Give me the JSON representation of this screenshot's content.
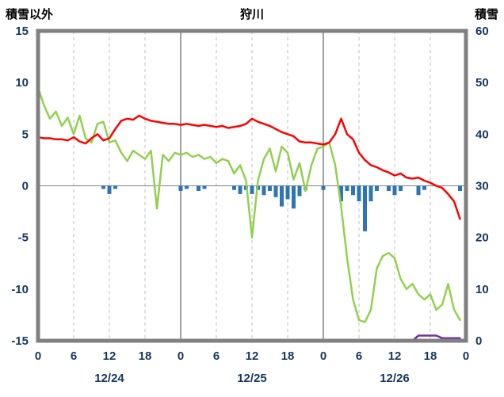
{
  "header": {
    "left_axis_title": "積雪以外",
    "chart_title": "狩川",
    "right_axis_title": "積雪"
  },
  "chart_data": {
    "type": "line",
    "title": "狩川",
    "left_axis": {
      "label": "積雪以外",
      "min": -15,
      "max": 15,
      "ticks": [
        15,
        10,
        5,
        0,
        -5,
        -10,
        -15
      ]
    },
    "right_axis": {
      "label": "積雪",
      "min": 0,
      "max": 60,
      "ticks": [
        60,
        50,
        40,
        30,
        20,
        10,
        0
      ]
    },
    "x_axis": {
      "hours_total": 72,
      "tick_hours": [
        0,
        6,
        12,
        18,
        24,
        30,
        36,
        42,
        48,
        54,
        60,
        66,
        72
      ],
      "tick_labels": [
        "0",
        "6",
        "12",
        "18",
        "0",
        "6",
        "12",
        "18",
        "0",
        "6",
        "12",
        "18",
        "0"
      ],
      "day_boundaries": [
        24,
        48
      ],
      "date_labels": [
        {
          "label": "12/24",
          "center_hour": 12
        },
        {
          "label": "12/25",
          "center_hour": 36
        },
        {
          "label": "12/26",
          "center_hour": 60
        }
      ]
    },
    "series": [
      {
        "name": "green-line",
        "color": "#92D050",
        "axis": "left",
        "values": [
          9.5,
          7.8,
          6.5,
          7.2,
          5.8,
          6.6,
          5.0,
          6.8,
          4.6,
          4.2,
          6.0,
          6.2,
          4.2,
          4.4,
          3.2,
          2.4,
          3.4,
          3.0,
          2.6,
          3.4,
          -2.2,
          3.0,
          2.4,
          3.2,
          3.0,
          3.2,
          2.8,
          3.0,
          2.6,
          2.8,
          2.2,
          2.6,
          2.4,
          1.2,
          2.0,
          0.5,
          -5.0,
          0.5,
          2.6,
          3.6,
          1.4,
          3.8,
          3.2,
          0.6,
          2.2,
          -0.5,
          2.0,
          3.6,
          3.8,
          4.2,
          2.0,
          -2.0,
          -7.0,
          -11.0,
          -13.0,
          -13.2,
          -12.0,
          -8.0,
          -6.8,
          -6.5,
          -7.0,
          -9.0,
          -10.0,
          -9.5,
          -10.5,
          -11.0,
          -10.5,
          -12.0,
          -11.5,
          -9.5,
          -12.0,
          -13.0
        ]
      },
      {
        "name": "red-line",
        "color": "#FF0000",
        "axis": "left",
        "values": [
          4.7,
          4.6,
          4.6,
          4.5,
          4.5,
          4.4,
          4.7,
          4.3,
          4.1,
          4.6,
          5.0,
          4.4,
          4.6,
          5.5,
          6.3,
          6.5,
          6.4,
          6.8,
          6.5,
          6.3,
          6.2,
          6.1,
          6.0,
          6.0,
          5.9,
          6.0,
          5.9,
          5.8,
          5.9,
          5.8,
          5.7,
          5.8,
          5.6,
          5.7,
          5.8,
          6.0,
          6.5,
          6.2,
          6.0,
          5.8,
          5.5,
          5.2,
          5.0,
          4.8,
          4.3,
          4.2,
          4.2,
          4.1,
          4.0,
          4.2,
          5.0,
          6.5,
          5.0,
          4.5,
          3.2,
          2.5,
          2.0,
          1.8,
          1.5,
          1.3,
          1.0,
          1.2,
          0.8,
          0.7,
          0.8,
          0.5,
          0.3,
          0.0,
          -0.2,
          -0.8,
          -1.5,
          -3.2
        ]
      },
      {
        "name": "purple-line",
        "color": "#7030A0",
        "axis": "right",
        "values": [
          0,
          0,
          0,
          0,
          0,
          0,
          0,
          0,
          0,
          0,
          0,
          0,
          0,
          0,
          0,
          0,
          0,
          0,
          0,
          0,
          0,
          0,
          0,
          0,
          0,
          0,
          0,
          0,
          0,
          0,
          0,
          0,
          0,
          0,
          0,
          0,
          0,
          0,
          0,
          0,
          0,
          0,
          0,
          0,
          0,
          0,
          0,
          0,
          0,
          0,
          0,
          0,
          0,
          0,
          0,
          0,
          0,
          0,
          0,
          0,
          0,
          0,
          0,
          0,
          1,
          1,
          1,
          1,
          0.5,
          0.5,
          0.5,
          0.5
        ]
      }
    ],
    "bars": {
      "name": "blue-bars",
      "color": "#2E75B6",
      "axis": "left",
      "baseline": 0,
      "direction": "down",
      "values": [
        0,
        0,
        0,
        0,
        0,
        0,
        0,
        0,
        0,
        0,
        0,
        0.3,
        0.8,
        0.3,
        0,
        0,
        0,
        0,
        0,
        0,
        0,
        0,
        0,
        0,
        0.5,
        0.3,
        0,
        0.5,
        0.3,
        0,
        0,
        0,
        0,
        0.4,
        0.8,
        0.4,
        0.8,
        0.4,
        0.9,
        0.5,
        1.1,
        2.0,
        1.3,
        2.2,
        1.0,
        0.4,
        0,
        0,
        0.4,
        0,
        0,
        1.5,
        0.5,
        0.9,
        1.5,
        4.4,
        1.5,
        0.5,
        0,
        0.5,
        0.9,
        0.5,
        0,
        0,
        0.9,
        0.4,
        0,
        0,
        0,
        0,
        0,
        0.5
      ]
    },
    "colors": {
      "grid": "#BFBFBF",
      "day_line": "#808080",
      "border": "#808080",
      "zero_line": "#808080",
      "tick_text": "#17375E",
      "title_text": "#000000",
      "plot_bg": "#FFFFFF"
    },
    "layout": {
      "grid": "vertical-dashed",
      "legend": "none"
    }
  }
}
